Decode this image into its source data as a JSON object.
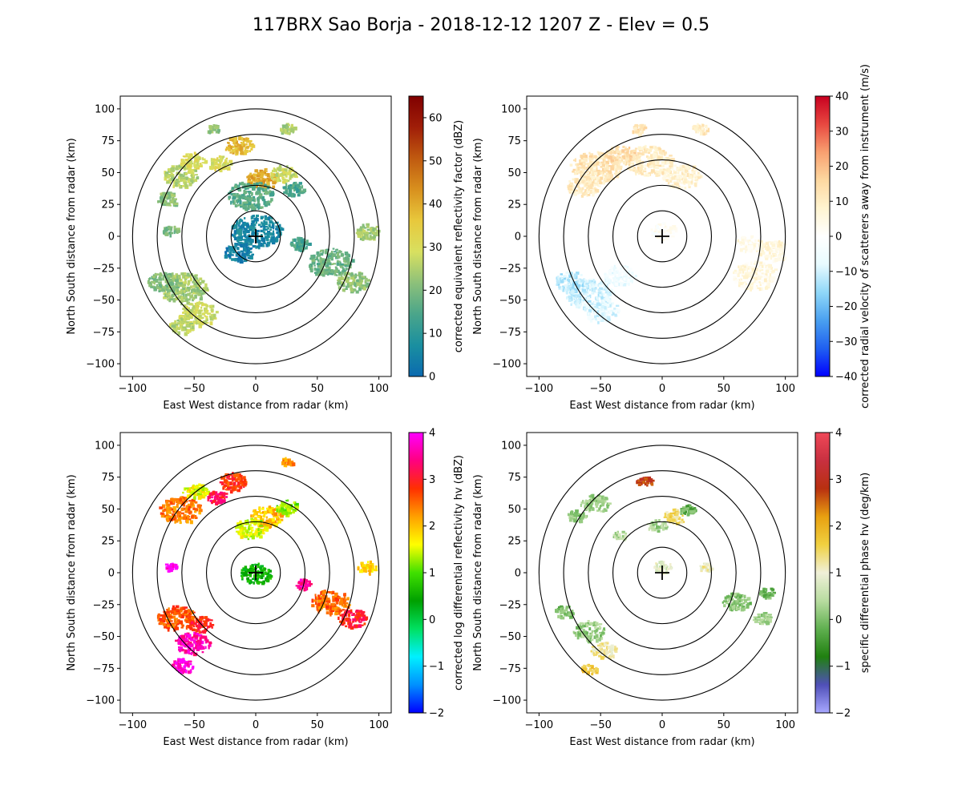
{
  "figure": {
    "title": "117BRX Sao Borja - 2018-12-12 1207 Z -  Elev = 0.5"
  },
  "chart_data": [
    {
      "type": "heatmap",
      "id": "reflectivity",
      "xlabel": "East West distance from radar (km)",
      "ylabel": "North South distance from radar (km)",
      "xlim": [
        -110,
        110
      ],
      "ylim": [
        -110,
        110
      ],
      "xticks": [
        -100,
        -50,
        0,
        50,
        100
      ],
      "yticks": [
        -100,
        -75,
        -50,
        -25,
        0,
        25,
        50,
        75,
        100
      ],
      "range_rings_km": [
        20,
        40,
        60,
        80,
        100
      ],
      "colorbar": {
        "label": "corrected equivalent reflectivity factor (dBZ)",
        "min": 0,
        "max": 65,
        "ticks": [
          0,
          10,
          20,
          30,
          40,
          50,
          60
        ],
        "colors": [
          "#0b6ab0",
          "#1a8fa0",
          "#4aa58a",
          "#8cc07a",
          "#d8e060",
          "#e8c83c",
          "#d8901e",
          "#c05a10",
          "#a01e08",
          "#800000"
        ]
      }
    },
    {
      "type": "heatmap",
      "id": "velocity",
      "xlabel": "East West distance from radar (km)",
      "ylabel": "North South distance from radar (km)",
      "xlim": [
        -110,
        110
      ],
      "ylim": [
        -110,
        110
      ],
      "xticks": [
        -100,
        -50,
        0,
        50,
        100
      ],
      "yticks": [
        -100,
        -75,
        -50,
        -25,
        0,
        25,
        50,
        75,
        100
      ],
      "range_rings_km": [
        20,
        40,
        60,
        80,
        100
      ],
      "colorbar": {
        "label": "corrected radial velocity of scatterers away from instrument (m/s)",
        "min": -40,
        "max": 40,
        "ticks": [
          -40,
          -30,
          -20,
          -10,
          0,
          10,
          20,
          30,
          40
        ],
        "colors": [
          "#0000ff",
          "#2060f0",
          "#4aa0f0",
          "#90d8f8",
          "#e8fbff",
          "#ffffff",
          "#fff4d0",
          "#fdd8a0",
          "#f8a070",
          "#e84840",
          "#c80020"
        ]
      }
    },
    {
      "type": "heatmap",
      "id": "differential_reflectivity",
      "xlabel": "East West distance from radar (km)",
      "ylabel": "North South distance from radar (km)",
      "xlim": [
        -110,
        110
      ],
      "ylim": [
        -110,
        110
      ],
      "xticks": [
        -100,
        -50,
        0,
        50,
        100
      ],
      "yticks": [
        -100,
        -75,
        -50,
        -25,
        0,
        25,
        50,
        75,
        100
      ],
      "range_rings_km": [
        20,
        40,
        60,
        80,
        100
      ],
      "colorbar": {
        "label": "corrected log differential reflectivity hv (dBZ)",
        "min": -2,
        "max": 4,
        "ticks": [
          -2,
          -1,
          0,
          1,
          2,
          3,
          4
        ],
        "colors": [
          "#0000ff",
          "#0090ff",
          "#00f0ff",
          "#00e060",
          "#00a000",
          "#40e000",
          "#ffff00",
          "#ffa000",
          "#ff3000",
          "#ff0080",
          "#ff00ff"
        ]
      }
    },
    {
      "type": "heatmap",
      "id": "specific_differential_phase",
      "xlabel": "East West distance from radar (km)",
      "ylabel": "North South distance from radar (km)",
      "xlim": [
        -110,
        110
      ],
      "ylim": [
        -110,
        110
      ],
      "xticks": [
        -100,
        -50,
        0,
        50,
        100
      ],
      "yticks": [
        -100,
        -75,
        -50,
        -25,
        0,
        25,
        50,
        75,
        100
      ],
      "range_rings_km": [
        20,
        40,
        60,
        80,
        100
      ],
      "colorbar": {
        "label": "specific differential phase hv (deg/km)",
        "min": -2,
        "max": 4,
        "ticks": [
          -2,
          -1,
          0,
          1,
          2,
          3,
          4
        ],
        "colors": [
          "#a8a8ff",
          "#5050b8",
          "#208010",
          "#60b050",
          "#b8dca0",
          "#f0f0d8",
          "#f0d040",
          "#e8a010",
          "#b83010",
          "#c83040",
          "#f04858"
        ]
      }
    }
  ],
  "echoes": [
    [
      {
        "x": -62,
        "y": 48,
        "r": 11,
        "v": 26
      },
      {
        "x": -52,
        "y": 60,
        "r": 8,
        "v": 30
      },
      {
        "x": -72,
        "y": 30,
        "r": 7,
        "v": 22
      },
      {
        "x": -15,
        "y": 72,
        "r": 9,
        "v": 38
      },
      {
        "x": -30,
        "y": 58,
        "r": 7,
        "v": 30
      },
      {
        "x": 5,
        "y": 46,
        "r": 10,
        "v": 40
      },
      {
        "x": 22,
        "y": 50,
        "r": 8,
        "v": 28
      },
      {
        "x": -5,
        "y": 33,
        "r": 14,
        "v": 16
      },
      {
        "x": 30,
        "y": 38,
        "r": 7,
        "v": 14
      },
      {
        "x": -60,
        "y": -40,
        "r": 15,
        "v": 24
      },
      {
        "x": -75,
        "y": -35,
        "r": 10,
        "v": 20
      },
      {
        "x": -48,
        "y": -60,
        "r": 12,
        "v": 28
      },
      {
        "x": -62,
        "y": -70,
        "r": 8,
        "v": 26
      },
      {
        "x": 60,
        "y": -20,
        "r": 14,
        "v": 18
      },
      {
        "x": 78,
        "y": -35,
        "r": 10,
        "v": 22
      },
      {
        "x": 90,
        "y": 5,
        "r": 8,
        "v": 24
      },
      {
        "x": 35,
        "y": -5,
        "r": 6,
        "v": 14
      },
      {
        "x": -70,
        "y": 5,
        "r": 5,
        "v": 20
      },
      {
        "x": 0,
        "y": 5,
        "r": 16,
        "v": 6
      },
      {
        "x": -15,
        "y": -12,
        "r": 9,
        "v": 4
      },
      {
        "x": 25,
        "y": 85,
        "r": 5,
        "v": 24
      },
      {
        "x": -35,
        "y": 85,
        "r": 4,
        "v": 22
      }
    ],
    [
      {
        "x": -55,
        "y": 55,
        "r": 16,
        "v": 12
      },
      {
        "x": -65,
        "y": 40,
        "r": 10,
        "v": 10
      },
      {
        "x": -12,
        "y": 60,
        "r": 15,
        "v": 10
      },
      {
        "x": 15,
        "y": 48,
        "r": 12,
        "v": 8
      },
      {
        "x": -35,
        "y": 65,
        "r": 9,
        "v": 14
      },
      {
        "x": -60,
        "y": -45,
        "r": 15,
        "v": -10
      },
      {
        "x": -75,
        "y": -35,
        "r": 10,
        "v": -12
      },
      {
        "x": -50,
        "y": -58,
        "r": 11,
        "v": -8
      },
      {
        "x": -35,
        "y": -30,
        "r": 10,
        "v": -5
      },
      {
        "x": 75,
        "y": -30,
        "r": 14,
        "v": 5
      },
      {
        "x": 90,
        "y": -10,
        "r": 10,
        "v": 6
      },
      {
        "x": 70,
        "y": -5,
        "r": 8,
        "v": 4
      },
      {
        "x": 0,
        "y": 5,
        "r": 8,
        "v": 2
      },
      {
        "x": 30,
        "y": 85,
        "r": 5,
        "v": 10
      },
      {
        "x": -20,
        "y": 85,
        "r": 5,
        "v": 12
      }
    ],
    [
      {
        "x": -62,
        "y": 50,
        "r": 13,
        "v": 2.4
      },
      {
        "x": -50,
        "y": 65,
        "r": 8,
        "v": 1.6
      },
      {
        "x": -20,
        "y": 72,
        "r": 9,
        "v": 2.8
      },
      {
        "x": -32,
        "y": 60,
        "r": 6,
        "v": 3.2
      },
      {
        "x": 8,
        "y": 45,
        "r": 10,
        "v": 2.0
      },
      {
        "x": 25,
        "y": 52,
        "r": 7,
        "v": 1.2
      },
      {
        "x": -5,
        "y": 35,
        "r": 10,
        "v": 1.5
      },
      {
        "x": -65,
        "y": -35,
        "r": 12,
        "v": 2.6
      },
      {
        "x": -52,
        "y": -55,
        "r": 11,
        "v": 3.6
      },
      {
        "x": -60,
        "y": -72,
        "r": 7,
        "v": 3.8
      },
      {
        "x": -45,
        "y": -40,
        "r": 8,
        "v": 2.9
      },
      {
        "x": 60,
        "y": -22,
        "r": 12,
        "v": 2.5
      },
      {
        "x": 78,
        "y": -35,
        "r": 9,
        "v": 3.0
      },
      {
        "x": 90,
        "y": 5,
        "r": 6,
        "v": 1.8
      },
      {
        "x": 0,
        "y": 0,
        "r": 10,
        "v": 0.5
      },
      {
        "x": -70,
        "y": 5,
        "r": 4,
        "v": 3.9
      },
      {
        "x": 38,
        "y": -8,
        "r": 5,
        "v": 3.6
      },
      {
        "x": 25,
        "y": 88,
        "r": 4,
        "v": 2.2
      }
    ],
    [
      {
        "x": -55,
        "y": 55,
        "r": 9,
        "v": 0.2
      },
      {
        "x": -70,
        "y": 45,
        "r": 6,
        "v": 0.1
      },
      {
        "x": -15,
        "y": 72,
        "r": 5,
        "v": 2.8
      },
      {
        "x": 10,
        "y": 45,
        "r": 7,
        "v": 1.4
      },
      {
        "x": -5,
        "y": 38,
        "r": 6,
        "v": 0.3
      },
      {
        "x": 20,
        "y": 50,
        "r": 5,
        "v": -0.2
      },
      {
        "x": -60,
        "y": -45,
        "r": 10,
        "v": 0.2
      },
      {
        "x": -48,
        "y": -60,
        "r": 8,
        "v": 1.2
      },
      {
        "x": -60,
        "y": -75,
        "r": 5,
        "v": 1.6
      },
      {
        "x": -80,
        "y": -30,
        "r": 6,
        "v": 0.0
      },
      {
        "x": 60,
        "y": -22,
        "r": 9,
        "v": 0.1
      },
      {
        "x": 80,
        "y": -35,
        "r": 6,
        "v": 0.2
      },
      {
        "x": 85,
        "y": -15,
        "r": 5,
        "v": -0.1
      },
      {
        "x": 0,
        "y": 5,
        "r": 6,
        "v": 0.8
      },
      {
        "x": 35,
        "y": 5,
        "r": 4,
        "v": 1.1
      },
      {
        "x": -35,
        "y": 30,
        "r": 4,
        "v": 0.4
      }
    ]
  ]
}
